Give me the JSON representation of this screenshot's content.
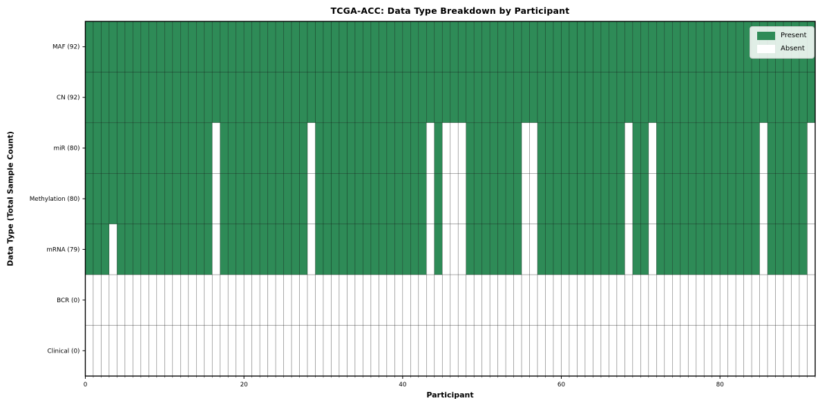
{
  "title": "TCGA-ACC: Data Type Breakdown by Participant",
  "chart_data": {
    "type": "heatmap",
    "title": "TCGA-ACC: Data Type Breakdown by Participant",
    "xlabel": "Participant",
    "ylabel": "Data Type (Total Sample Count)",
    "n_participants": 92,
    "x_ticks": [
      0,
      20,
      40,
      60,
      80
    ],
    "xlim": [
      0,
      92
    ],
    "grid": true,
    "legend_position": "upper right",
    "colors": {
      "present": "#2e8b57",
      "absent": "#ffffff",
      "cell_edge": "rgba(0,0,0,0.42)",
      "axis": "#000000",
      "text": "#000000"
    },
    "legend": [
      {
        "label": "Present",
        "color": "#2e8b57"
      },
      {
        "label": "Absent",
        "color": "#ffffff"
      }
    ],
    "rows": [
      {
        "label": "MAF (92)",
        "data_type": "MAF",
        "present_count": 92,
        "all_absent": false,
        "absent_participants": []
      },
      {
        "label": "CN (92)",
        "data_type": "CN",
        "present_count": 92,
        "all_absent": false,
        "absent_participants": []
      },
      {
        "label": "miR (80)",
        "data_type": "miR",
        "present_count": 80,
        "all_absent": false,
        "absent_participants": [
          16,
          28,
          43,
          45,
          46,
          47,
          55,
          56,
          68,
          71,
          85,
          91
        ]
      },
      {
        "label": "Methylation (80)",
        "data_type": "Methylation",
        "present_count": 80,
        "all_absent": false,
        "absent_participants": [
          16,
          28,
          43,
          45,
          46,
          47,
          55,
          56,
          68,
          71,
          85,
          91
        ]
      },
      {
        "label": "mRNA (79)",
        "data_type": "mRNA",
        "present_count": 79,
        "all_absent": false,
        "absent_participants": [
          3,
          16,
          28,
          43,
          45,
          46,
          47,
          55,
          56,
          68,
          71,
          85,
          91
        ]
      },
      {
        "label": "BCR (0)",
        "data_type": "BCR",
        "present_count": 0,
        "all_absent": true,
        "absent_participants": []
      },
      {
        "label": "Clinical (0)",
        "data_type": "Clinical",
        "present_count": 0,
        "all_absent": true,
        "absent_participants": []
      }
    ]
  }
}
